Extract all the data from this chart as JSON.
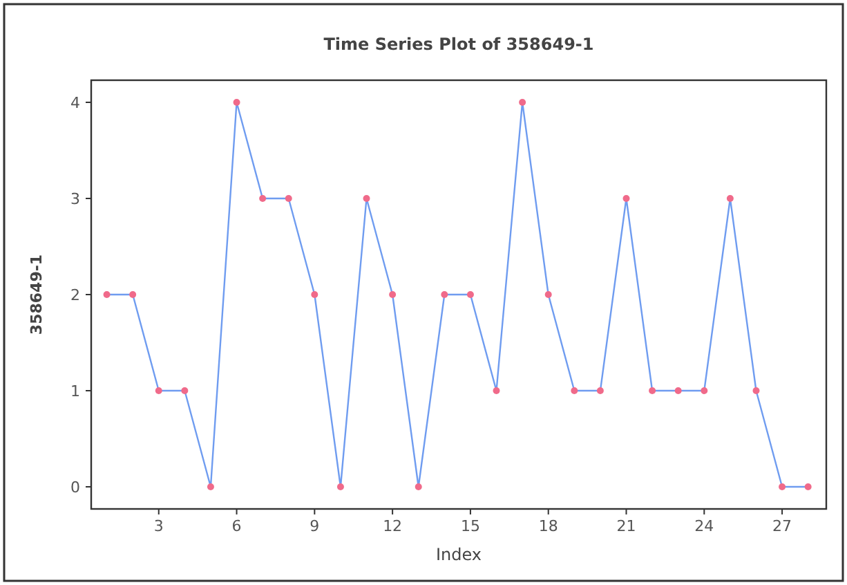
{
  "chart_data": {
    "type": "line",
    "title": "Time Series Plot of 358649-1",
    "xlabel": "Index",
    "ylabel": "358649-1",
    "x": [
      1,
      2,
      3,
      4,
      5,
      6,
      7,
      8,
      9,
      10,
      11,
      12,
      13,
      14,
      15,
      16,
      17,
      18,
      19,
      20,
      21,
      22,
      23,
      24,
      25,
      26,
      27,
      28
    ],
    "series": [
      {
        "color": "#6f9cf0",
        "values": [
          2,
          2,
          1,
          1,
          0,
          4,
          3,
          3,
          2,
          0,
          3,
          2,
          0,
          2,
          2,
          1,
          4,
          2,
          1,
          1,
          3,
          1,
          1,
          1,
          3,
          1,
          0,
          0
        ]
      }
    ],
    "xlim": [
      0.4,
      28.7
    ],
    "xticks": [
      3,
      6,
      9,
      12,
      15,
      18,
      21,
      24,
      27
    ],
    "ylim": [
      -0.23,
      4.23
    ],
    "yticks": [
      0,
      1,
      2,
      3,
      4
    ],
    "grid": false,
    "marker": "circle",
    "line_style": "solid"
  }
}
